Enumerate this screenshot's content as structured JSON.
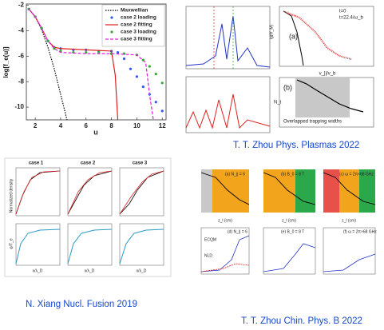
{
  "main_plot": {
    "ylabel": "log[f_e(u)]",
    "xlabel": "u",
    "xlim": [
      1.3,
      12.3
    ],
    "ylim": [
      -11,
      -1.9
    ],
    "xticks": [
      2,
      4,
      6,
      8,
      10,
      12
    ],
    "yticks": [
      -2,
      -4,
      -6,
      -8,
      -10
    ],
    "series": [
      {
        "name": "Maxwellian",
        "color": "#000000",
        "style": "dotted",
        "x": [
          1.5,
          2,
          2.5,
          3,
          3.5,
          4,
          4.5
        ],
        "values": [
          -2.3,
          -2.9,
          -3.9,
          -5.3,
          -7.0,
          -9.0,
          -11.0
        ]
      },
      {
        "name": "case 2 loading",
        "color": "#2f5fe0",
        "style": "markers",
        "x": [
          1.5,
          2,
          2.5,
          3,
          3.5,
          4,
          5,
          6,
          7,
          8,
          8.5,
          9,
          9.5,
          10,
          10.5,
          11,
          11.5,
          12
        ],
        "values": [
          -2.3,
          -2.9,
          -3.8,
          -4.8,
          -5.3,
          -5.4,
          -5.5,
          -5.5,
          -5.6,
          -5.6,
          -5.7,
          -6.2,
          -7.0,
          -7.6,
          -8.4,
          -9.0,
          -9.6,
          -10.3
        ]
      },
      {
        "name": "case 2 fitting",
        "color": "#e02020",
        "style": "solid",
        "x": [
          1.5,
          2,
          2.5,
          3,
          3.5,
          4,
          6,
          8,
          8.3,
          8.5
        ],
        "values": [
          -2.3,
          -2.9,
          -3.8,
          -4.8,
          -5.3,
          -5.4,
          -5.5,
          -5.6,
          -7.5,
          -11
        ]
      },
      {
        "name": "case 3 loading",
        "color": "#33aa33",
        "style": "markers",
        "x": [
          1.5,
          2,
          2.5,
          3,
          3.5,
          4,
          5,
          6,
          7,
          8,
          9,
          10,
          10.5,
          11,
          11.5,
          12
        ],
        "values": [
          -2.3,
          -2.9,
          -3.8,
          -4.8,
          -5.4,
          -5.6,
          -5.7,
          -5.7,
          -5.7,
          -5.8,
          -5.8,
          -5.9,
          -6.3,
          -6.8,
          -7.4,
          -8.1
        ]
      },
      {
        "name": "case 3 fitting",
        "color": "#e020e0",
        "style": "dashed",
        "x": [
          1.5,
          2,
          2.5,
          3,
          3.5,
          4,
          6,
          8,
          10,
          10.7,
          11,
          11.3
        ],
        "values": [
          -2.3,
          -2.9,
          -3.8,
          -4.8,
          -5.4,
          -5.7,
          -5.8,
          -5.8,
          -5.9,
          -6.5,
          -9,
          -11
        ]
      }
    ]
  },
  "figures": [
    {
      "caption": "T. T. Zhou Phys. Plasmas 2022",
      "labels": [
        "(a)",
        "(b)",
        "t=0",
        "t=22.4/ω_b",
        "Overlapped trapping widths",
        "v_||/v_b",
        "N_t",
        "lg(f/f_M)"
      ]
    },
    {
      "caption": "N. Xiang Nucl. Fusion 2019",
      "labels": [
        "case 1",
        "case 2",
        "case 3",
        "Normalized density",
        "φ/T_e",
        "x/λ_D"
      ]
    },
    {
      "caption": "T. T. Zhou Chin. Phys. B 2022",
      "labels": [
        "(a) N_∥ = 6",
        "(b) B_0 = 8 T",
        "(c) ω = 2π×68 GHz",
        "(d) N_∥ = 6",
        "(e) B_0 = 8 T",
        "(f) ω = 2π×68 GHz",
        "z_l (cm)",
        "ECQM",
        "NLD"
      ]
    }
  ]
}
